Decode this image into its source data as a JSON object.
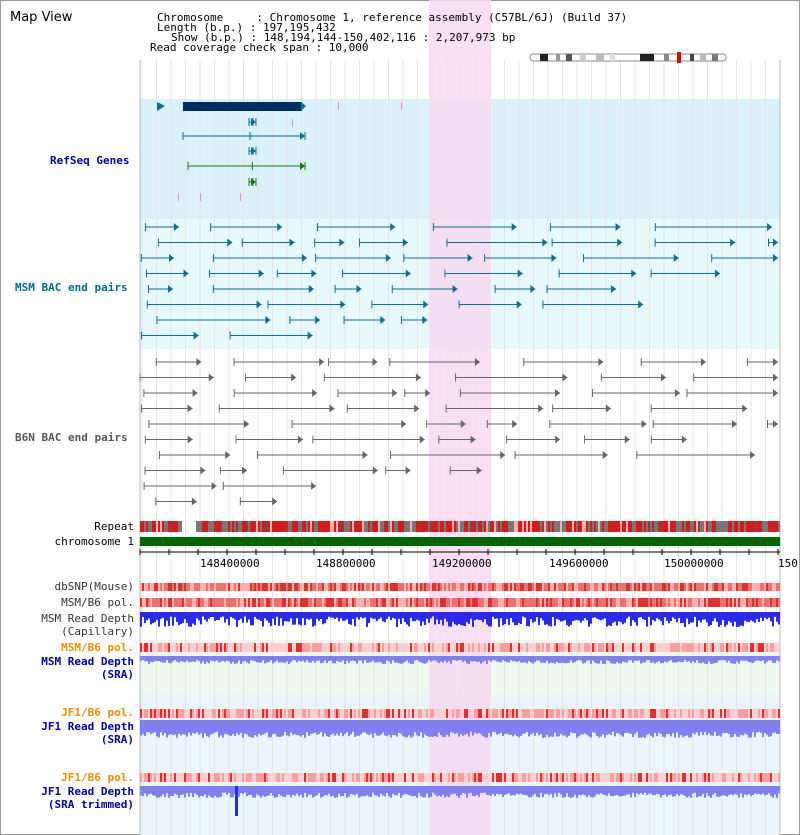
{
  "view_title": "Map View",
  "info": {
    "chromosome": "Chromosome     : Chromosome 1, reference assembly (C57BL/6J) (Build 37)",
    "length": "Length (b.p.) : 197,195,432",
    "show": "Show (b.p.) : 148,194,144-150,402,116 : 2,207,973 bp",
    "span": "Read coverage check span : 10,000"
  },
  "tracks": {
    "refseq": "RefSeq Genes",
    "msm_bac": "MSM BAC end pairs",
    "b6n_bac": "B6N BAC end pairs",
    "repeat": "Repeat",
    "chrom": "chromosome 1",
    "dbsnp": "dbSNP(Mouse)",
    "msm_pol_a": "MSM/B6 pol.",
    "msm_depth_cap_1": "MSM Read Depth",
    "msm_depth_cap_2": "(Capillary)",
    "msm_pol_b": "MSM/B6 pol.",
    "msm_depth_sra_1": "MSM Read Depth",
    "msm_depth_sra_2": "(SRA)",
    "jf1_pol_a": "JF1/B6 pol.",
    "jf1_depth_1": "JF1 Read Depth",
    "jf1_depth_2": "(SRA)",
    "jf1_pol_b": "JF1/B6 pol.",
    "jf1_trim_1": "JF1 Read Depth",
    "jf1_trim_2": "(SRA trimmed)"
  },
  "axis": {
    "ticks": [
      "148400000",
      "148800000",
      "149200000",
      "149600000",
      "150000000",
      "150"
    ]
  },
  "colors": {
    "refseq_bg": "#d8f1fb",
    "msm_bg": "#e6f9fb",
    "highlight": "#f7d9f1",
    "msm_label": "#006a8a",
    "refseq_label": "#0000aa",
    "b6n_label": "#555555",
    "chrom_green": "#006600",
    "depth_blue": "#2a2aee",
    "depth_light": "#8080f2",
    "pol_label": "#e89000"
  }
}
